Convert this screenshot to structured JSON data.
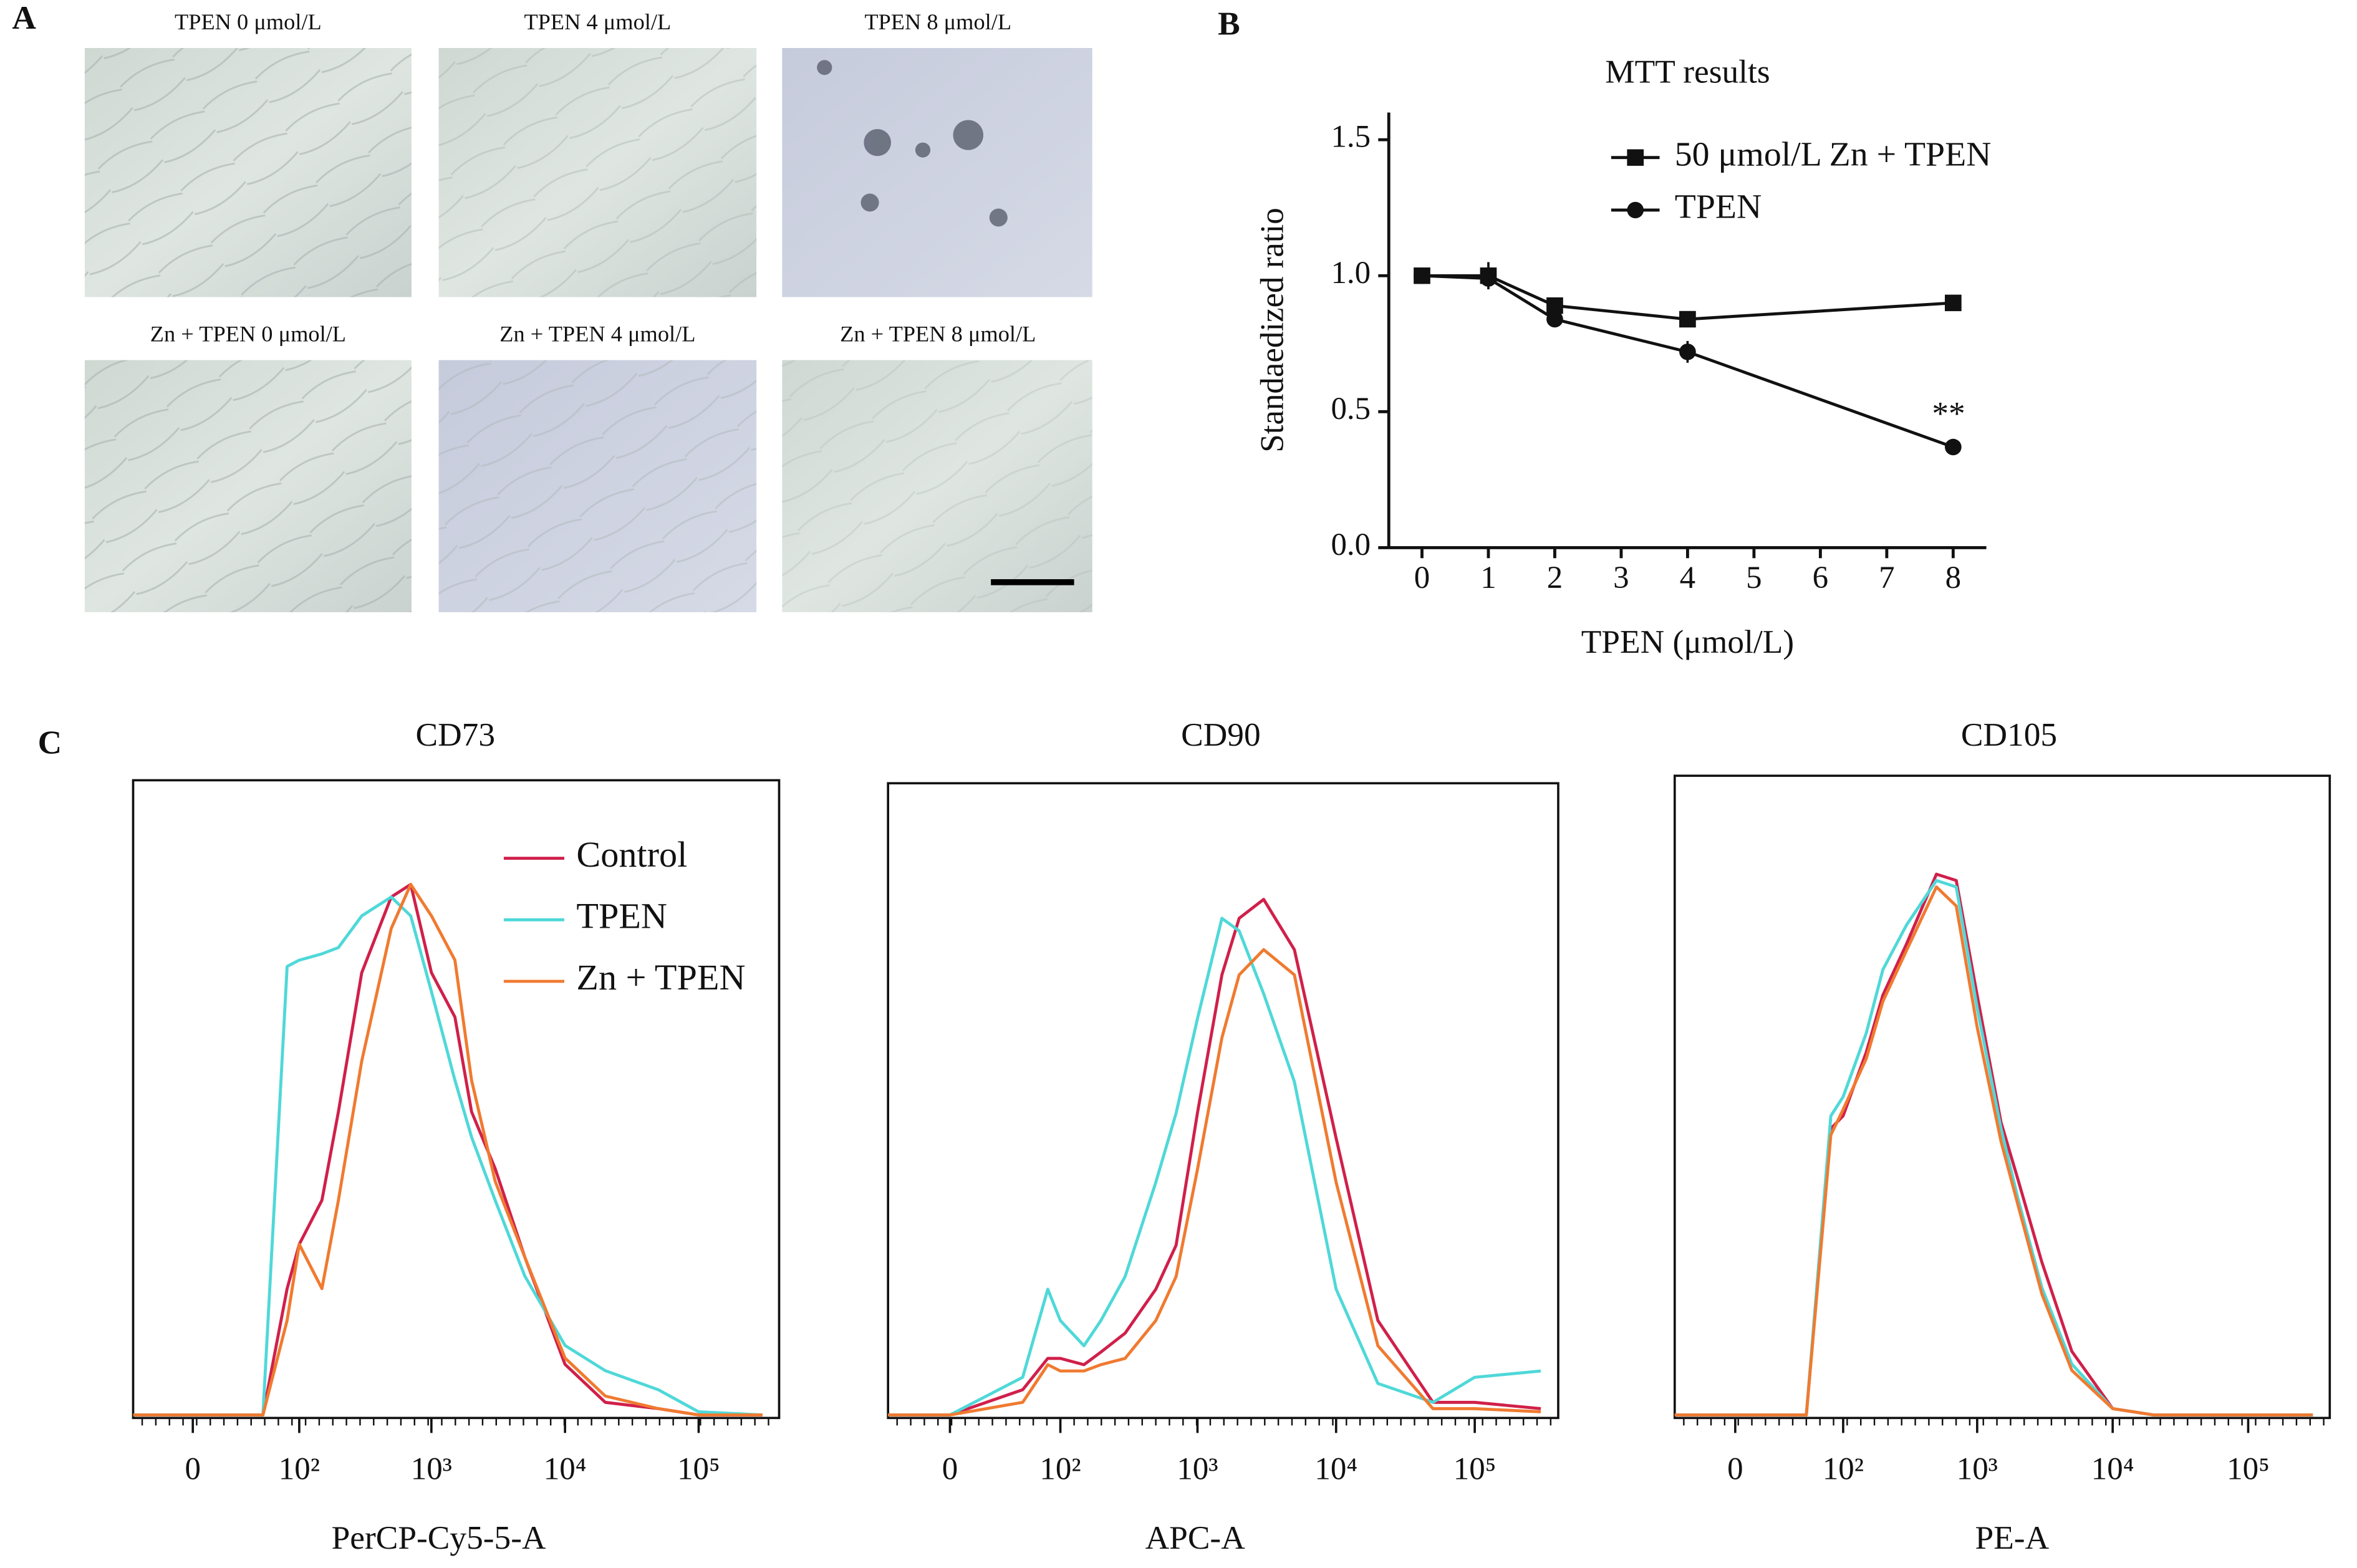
{
  "panel_labels": [
    "A",
    "B",
    "C"
  ],
  "panel_a": {
    "images": [
      "TPEN 0 μmol/L",
      "TPEN 4 μmol/L",
      "TPEN 8 μmol/L",
      "Zn + TPEN 0 μmol/L",
      "Zn + TPEN 4 μmol/L",
      "Zn + TPEN 8 μmol/L"
    ]
  },
  "chart_data": [
    {
      "type": "line",
      "title": "MTT results",
      "x_label": "TPEN (μmol/L)",
      "y_label": "Standaedized ratio",
      "x": [
        0,
        1,
        2,
        4,
        8
      ],
      "series": [
        {
          "name": "50 μmol/L Zn + TPEN",
          "color": "#111111",
          "marker": "square",
          "values": [
            1.0,
            1.0,
            0.89,
            0.84,
            0.9
          ],
          "errors": [
            0.01,
            0.05,
            0.02,
            0.02,
            0.02
          ]
        },
        {
          "name": "TPEN",
          "color": "#111111",
          "marker": "circle",
          "values": [
            1.0,
            0.99,
            0.84,
            0.72,
            0.37
          ],
          "errors": [
            0.01,
            0.02,
            0.02,
            0.04,
            0.01
          ]
        }
      ],
      "annotations": [
        {
          "text": "**",
          "x": 8,
          "y": 0.37
        }
      ],
      "xlim": [
        -0.5,
        8.5
      ],
      "ylim": [
        0,
        1.6
      ],
      "xticks": [
        0,
        1,
        2,
        3,
        4,
        5,
        6,
        7,
        8
      ],
      "yticks": [
        {
          "value": 0,
          "label": "0.0"
        },
        0.5,
        {
          "value": 1,
          "label": "1.0"
        },
        1.5
      ],
      "legend": "upper right"
    },
    {
      "type": "histogram-line",
      "title": "CD73",
      "x_label": "PerCP-Cy5-5-A",
      "xscale": "biexponential",
      "x": [
        -40,
        0,
        50,
        80,
        100,
        150,
        200,
        300,
        500,
        700,
        1000,
        1500,
        2000,
        3000,
        5000,
        10000,
        20000,
        50000,
        100000,
        300000
      ],
      "series": [
        {
          "name": "Control",
          "color": "#d0204a",
          "values": [
            0,
            0,
            0,
            20,
            27,
            34,
            48,
            70,
            82,
            84,
            70,
            63,
            48,
            39,
            25,
            8,
            2,
            1,
            0,
            0
          ]
        },
        {
          "name": "TPEN",
          "color": "#4fd8d8",
          "values": [
            0,
            0,
            0,
            71,
            72,
            73,
            74,
            79,
            82,
            79,
            67,
            53,
            44,
            34,
            22,
            11,
            7,
            4,
            0.5,
            0
          ]
        },
        {
          "name": "Zn + TPEN",
          "color": "#f07a30",
          "values": [
            0,
            0,
            0,
            15,
            27,
            20,
            34,
            56,
            77,
            84,
            79,
            72,
            53,
            37,
            25,
            9,
            3,
            1,
            0,
            0
          ]
        }
      ],
      "xlim": [
        -40,
        400000
      ],
      "ylim": [
        0,
        100
      ],
      "xticks": [
        0,
        {
          "value": 100,
          "label": "10²"
        },
        {
          "value": 1000,
          "label": "10³"
        },
        {
          "value": 10000,
          "label": "10⁴"
        },
        {
          "value": 100000,
          "label": "10⁵"
        }
      ],
      "legend": "upper center"
    },
    {
      "type": "histogram-line",
      "title": "CD90",
      "x_label": "APC-A",
      "xscale": "biexponential",
      "x": [
        -40,
        0,
        50,
        80,
        100,
        150,
        200,
        300,
        500,
        700,
        1000,
        1500,
        2000,
        3000,
        5000,
        10000,
        20000,
        50000,
        100000,
        300000
      ],
      "series": [
        {
          "color": "#d0204a",
          "values": [
            0,
            0,
            4,
            9,
            9,
            8,
            10,
            13,
            20,
            27,
            48,
            70,
            79,
            82,
            74,
            44,
            15,
            2,
            2,
            1
          ]
        },
        {
          "color": "#4fd8d8",
          "values": [
            0,
            0,
            6,
            20,
            15,
            11,
            15,
            22,
            37,
            48,
            63,
            79,
            77,
            67,
            53,
            20,
            5,
            2,
            6,
            7
          ]
        },
        {
          "color": "#f07a30",
          "values": [
            0,
            0,
            2,
            8,
            7,
            7,
            8,
            9,
            15,
            22,
            39,
            60,
            70,
            74,
            70,
            37,
            11,
            1,
            1,
            0.5
          ]
        }
      ],
      "xlim": [
        -40,
        400000
      ],
      "ylim": [
        0,
        100
      ],
      "xticks": [
        0,
        {
          "value": 100,
          "label": "10²"
        },
        {
          "value": 1000,
          "label": "10³"
        },
        {
          "value": 10000,
          "label": "10⁴"
        },
        {
          "value": 100000,
          "label": "10⁵"
        }
      ]
    },
    {
      "type": "histogram-line",
      "title": "CD105",
      "x_label": "PE-A",
      "xscale": "biexponential",
      "x": [
        -40,
        0,
        50,
        80,
        100,
        150,
        200,
        300,
        500,
        700,
        1000,
        1500,
        2000,
        3000,
        5000,
        10000,
        20000,
        50000,
        100000,
        300000
      ],
      "series": [
        {
          "color": "#d0204a",
          "values": [
            0,
            0,
            0,
            45,
            47,
            57,
            66,
            74,
            85,
            84,
            66,
            46,
            37,
            24,
            10,
            1,
            0,
            0,
            0,
            0
          ]
        },
        {
          "color": "#4fd8d8",
          "values": [
            0,
            0,
            0,
            47,
            50,
            60,
            70,
            77,
            84,
            83,
            64,
            45,
            34,
            20,
            8,
            1,
            0,
            0,
            0,
            0
          ]
        },
        {
          "color": "#f07a30",
          "values": [
            0,
            0,
            0,
            44,
            48,
            56,
            65,
            73,
            83,
            80,
            61,
            43,
            33,
            19,
            7,
            1,
            0,
            0,
            0,
            0
          ]
        }
      ],
      "xlim": [
        -40,
        400000
      ],
      "ylim": [
        0,
        100
      ],
      "xticks": [
        0,
        {
          "value": 100,
          "label": "10²"
        },
        {
          "value": 1000,
          "label": "10³"
        },
        {
          "value": 10000,
          "label": "10⁴"
        },
        {
          "value": 100000,
          "label": "10⁵"
        }
      ]
    }
  ]
}
